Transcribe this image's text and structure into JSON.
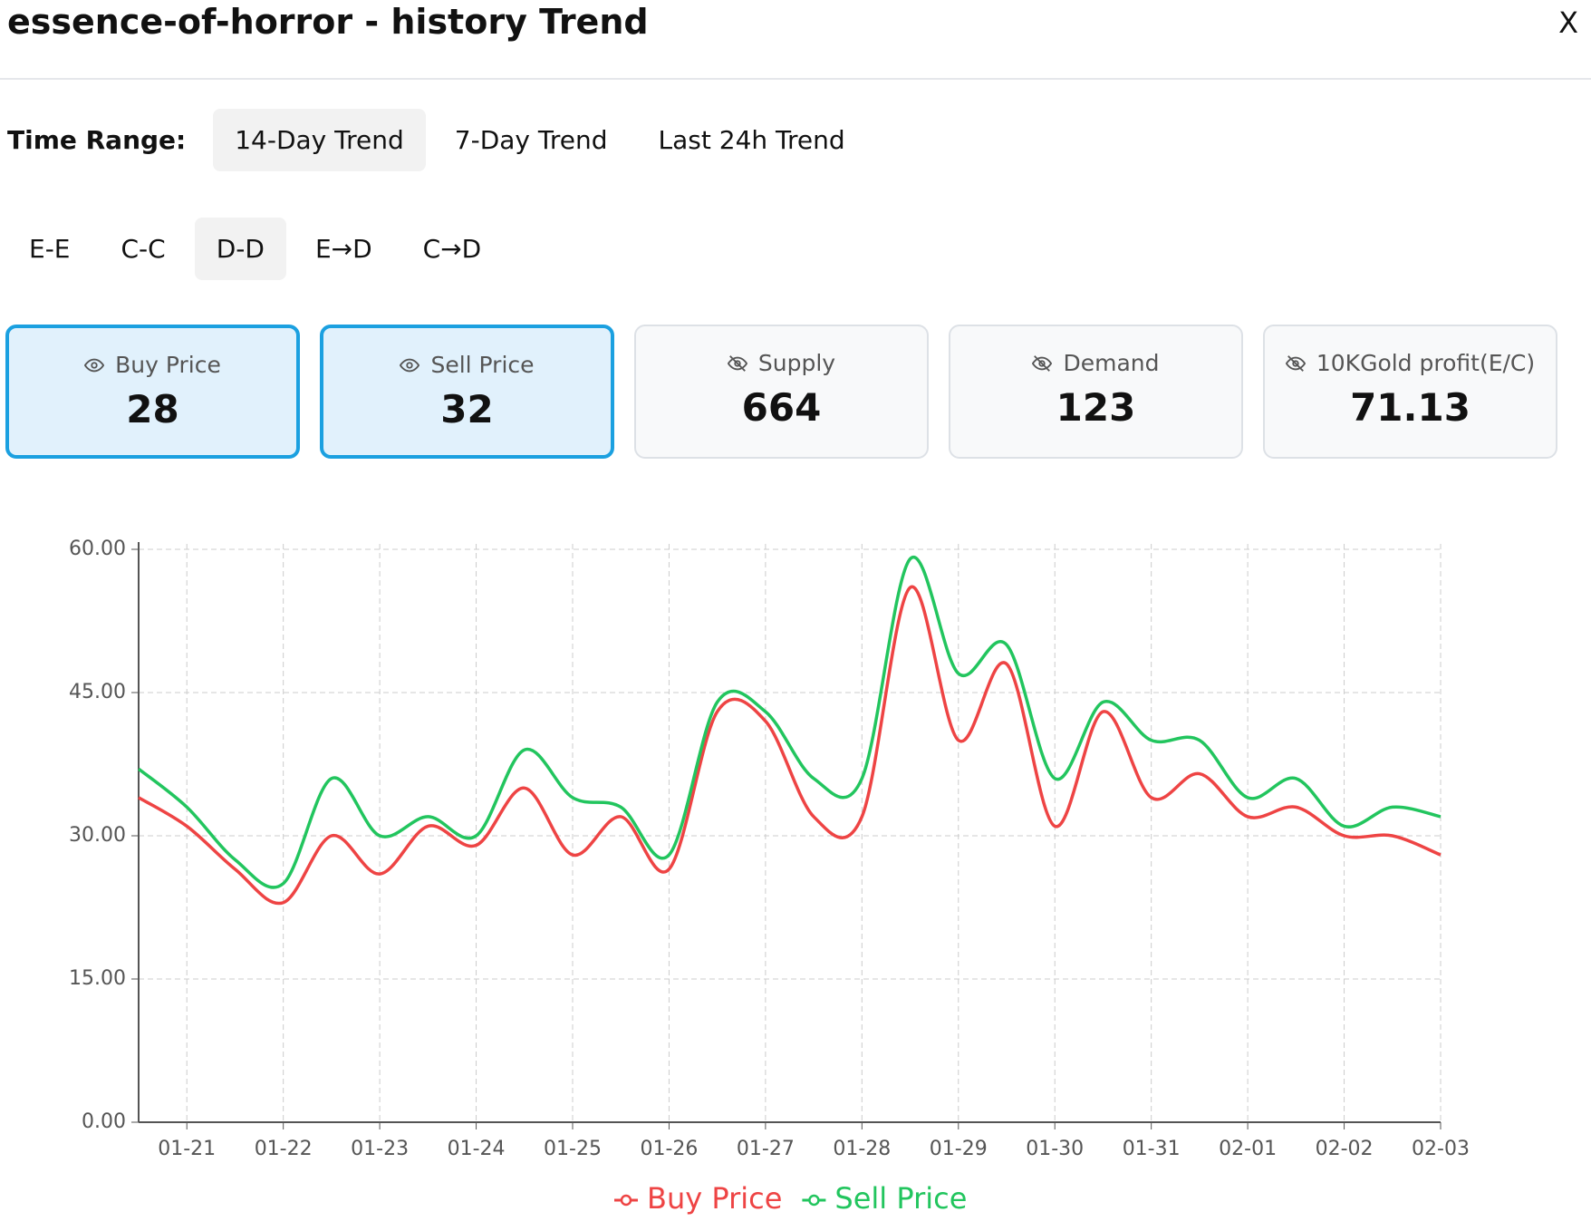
{
  "header": {
    "title": "essence-of-horror - history Trend",
    "close": "X"
  },
  "time_range": {
    "label": "Time Range:",
    "options": [
      "14-Day Trend",
      "7-Day Trend",
      "Last 24h Trend"
    ],
    "selected": 0
  },
  "modes": {
    "options": [
      "E-E",
      "C-C",
      "D-D",
      "E→D",
      "C→D"
    ],
    "selected": 2
  },
  "cards": [
    {
      "label": "Buy Price",
      "value": 28,
      "active": true
    },
    {
      "label": "Sell Price",
      "value": 32,
      "active": true
    },
    {
      "label": "Supply",
      "value": 664,
      "active": false
    },
    {
      "label": "Demand",
      "value": 123,
      "active": false
    },
    {
      "label": "10KGold profit(E/C)",
      "value": 71.13,
      "active": false
    }
  ],
  "chart_data": {
    "type": "line",
    "categories": [
      null,
      "01-21",
      null,
      "01-22",
      null,
      "01-23",
      null,
      "01-24",
      null,
      "01-25",
      null,
      "01-26",
      null,
      "01-27",
      null,
      "01-28",
      null,
      "01-29",
      null,
      "01-30",
      null,
      "01-31",
      null,
      "02-01",
      null,
      "02-02",
      null,
      "02-03"
    ],
    "series": [
      {
        "name": "Buy Price",
        "color": "#ee4444",
        "values": [
          34,
          31,
          26.5,
          23,
          30,
          26,
          31,
          29,
          35,
          28,
          32,
          26.5,
          43,
          42,
          32,
          32,
          56,
          40,
          48,
          31,
          43,
          34,
          36.5,
          32,
          33,
          30,
          30,
          28
        ]
      },
      {
        "name": "Sell Price",
        "color": "#22c55e",
        "values": [
          37,
          33,
          27.5,
          25,
          36,
          30,
          32,
          30,
          39,
          34,
          33,
          28,
          44,
          43,
          36,
          36,
          59,
          47,
          50,
          36,
          44,
          40,
          40,
          34,
          36,
          31,
          33,
          32
        ]
      }
    ],
    "ylim": [
      0,
      60
    ],
    "yticks": [
      {
        "value": 0,
        "label": "0.00"
      },
      {
        "value": 15,
        "label": "15.00"
      },
      {
        "value": 30,
        "label": "30.00"
      },
      {
        "value": 45,
        "label": "45.00"
      },
      {
        "value": 60,
        "label": "60.00"
      }
    ],
    "grid": true,
    "legend": "bottom"
  }
}
